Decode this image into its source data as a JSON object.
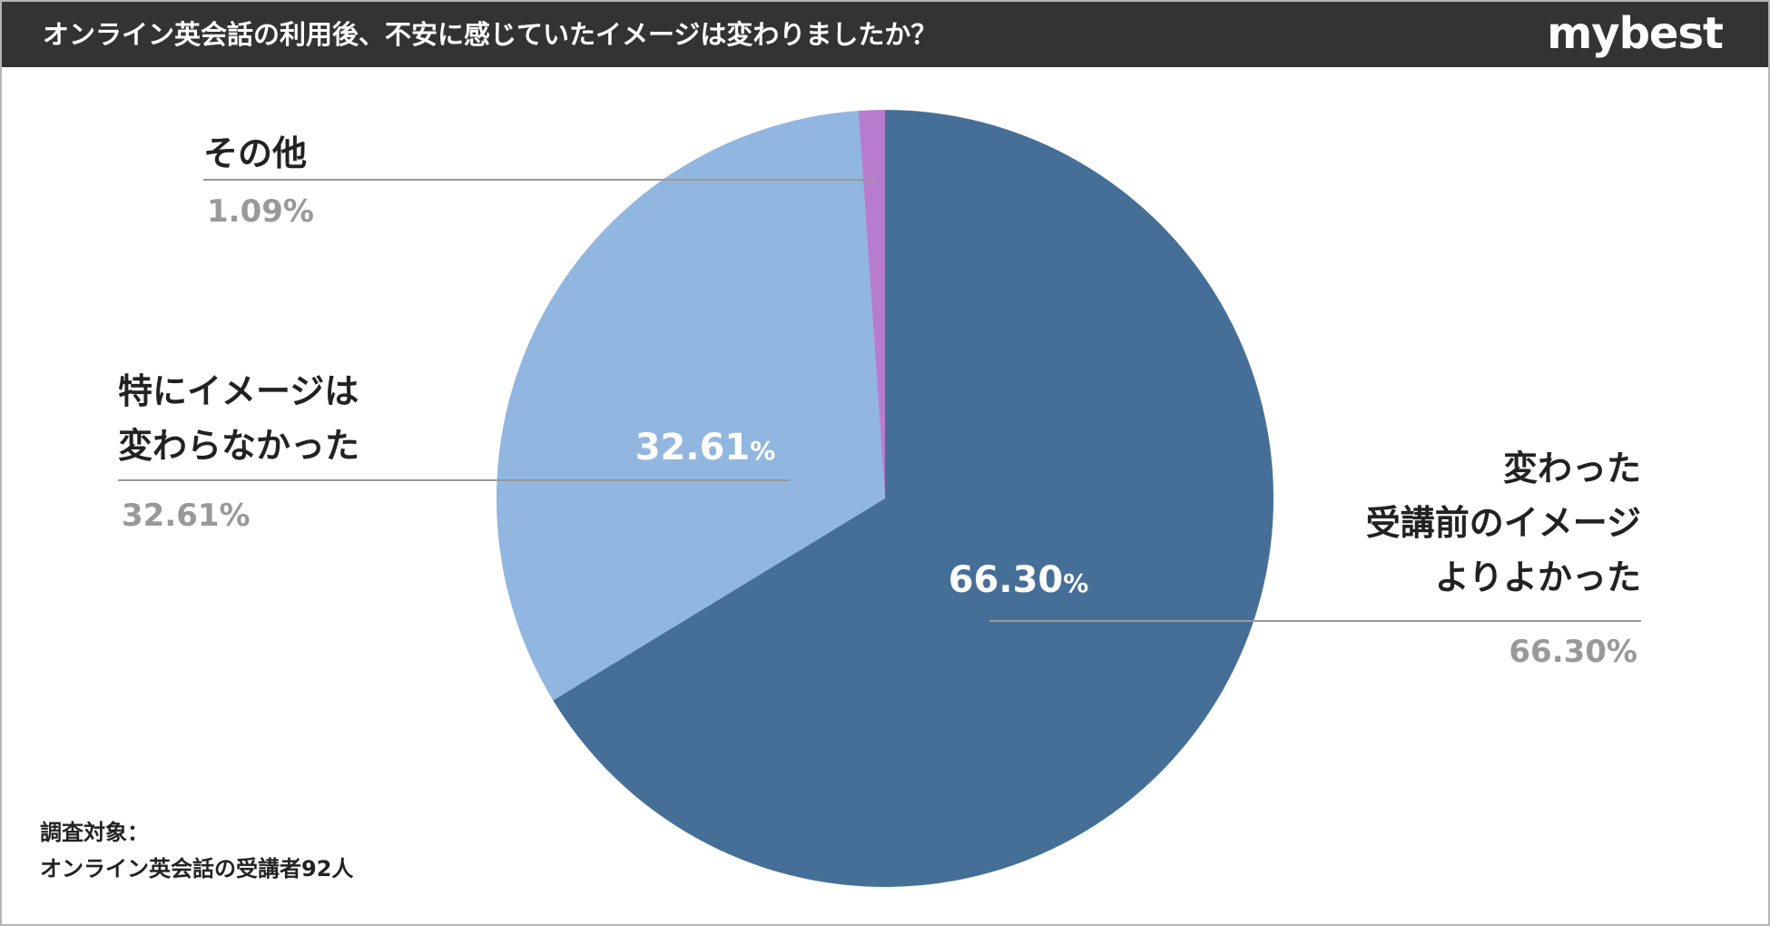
{
  "header": {
    "title": "オンライン英会話の利用後、不安に感じていたイメージは変わりましたか？",
    "brand": "mybest"
  },
  "footnote": {
    "line1": "調査対象：",
    "line2": "オンライン英会話の受講者92人"
  },
  "colors": {
    "header_bg": "#333333",
    "slice_changed": "#466f98",
    "slice_unchanged": "#91b6e0",
    "slice_other": "#b87ccf",
    "leader": "#999999",
    "percent_gray": "#999999"
  },
  "chart_data": {
    "type": "pie",
    "start_angle_deg": 0,
    "direction": "clockwise",
    "slices": [
      {
        "label_lines": [
          "変わった",
          "受講前のイメージ",
          "よりよかった"
        ],
        "value": 66.3,
        "percent_text": "66.30%",
        "inner_value": "66.30",
        "inner_unit": "%",
        "color": "#466f98"
      },
      {
        "label_lines": [
          "特にイメージは",
          "変わらなかった"
        ],
        "value": 32.61,
        "percent_text": "32.61%",
        "inner_value": "32.61",
        "inner_unit": "%",
        "color": "#91b6e0"
      },
      {
        "label_lines": [
          "その他"
        ],
        "value": 1.09,
        "percent_text": "1.09%",
        "inner_value": "",
        "inner_unit": "",
        "color": "#b87ccf"
      }
    ]
  }
}
